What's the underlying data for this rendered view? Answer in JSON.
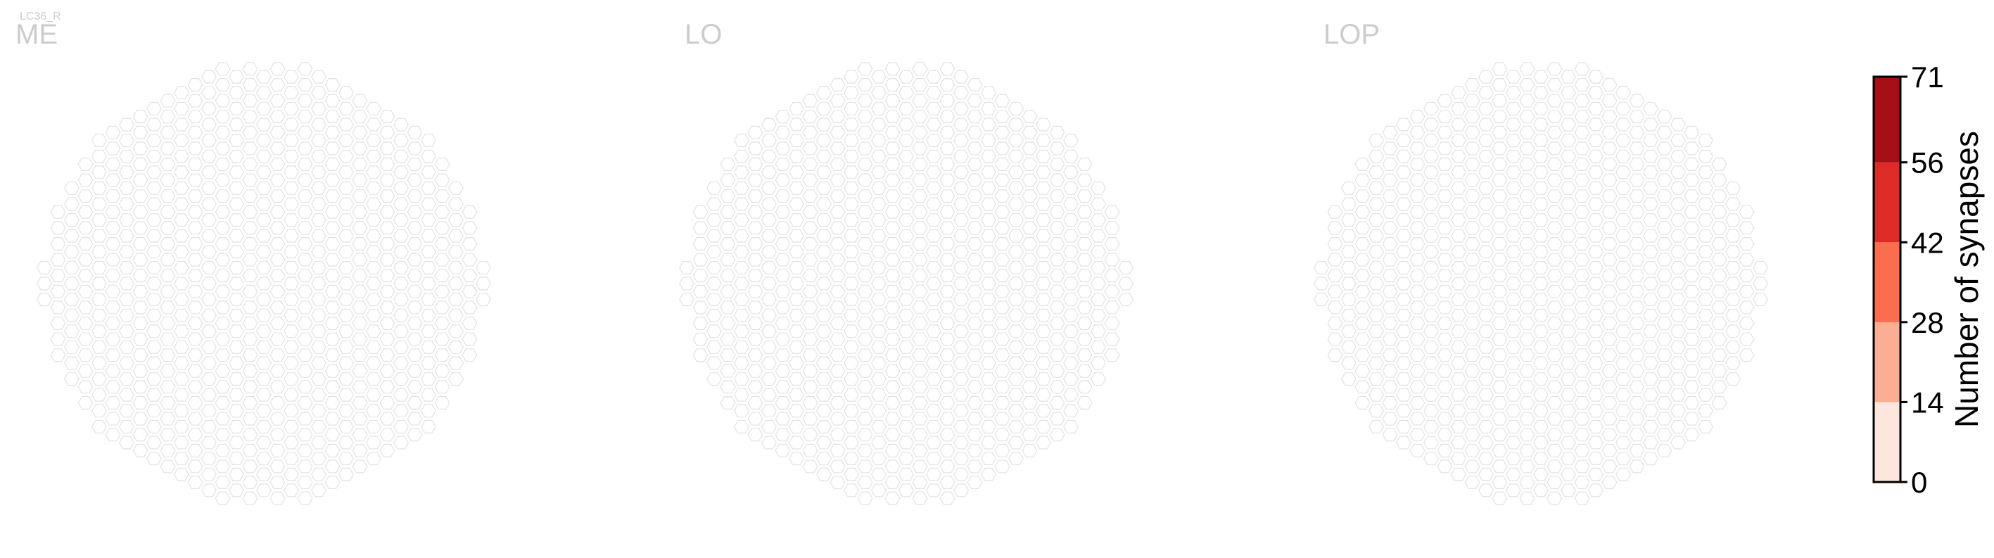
{
  "chart_data": {
    "type": "heatmap",
    "cell_type_label": "LC36_R",
    "panels": [
      {
        "label": "ME",
        "cells": []
      },
      {
        "label": "LO",
        "cells": []
      },
      {
        "label": "LOP",
        "cells": []
      }
    ],
    "colorbar": {
      "label": "Number of synapses",
      "ticks": [
        "0",
        "14",
        "28",
        "42",
        "56",
        "71"
      ],
      "range": [
        0,
        71
      ],
      "bins": [
        {
          "from": 0,
          "to": 14,
          "color": "#fde6dd"
        },
        {
          "from": 14,
          "to": 28,
          "color": "#fcae94"
        },
        {
          "from": 28,
          "to": 42,
          "color": "#fa6d4f"
        },
        {
          "from": 42,
          "to": 56,
          "color": "#dd2b25"
        },
        {
          "from": 56,
          "to": 71,
          "color": "#a50f15"
        }
      ]
    },
    "colors": {
      "empty_cell_stroke": "#e2e2e2",
      "absent_cell_fill": "#cccccc",
      "label_color": "#cccccc"
    }
  }
}
